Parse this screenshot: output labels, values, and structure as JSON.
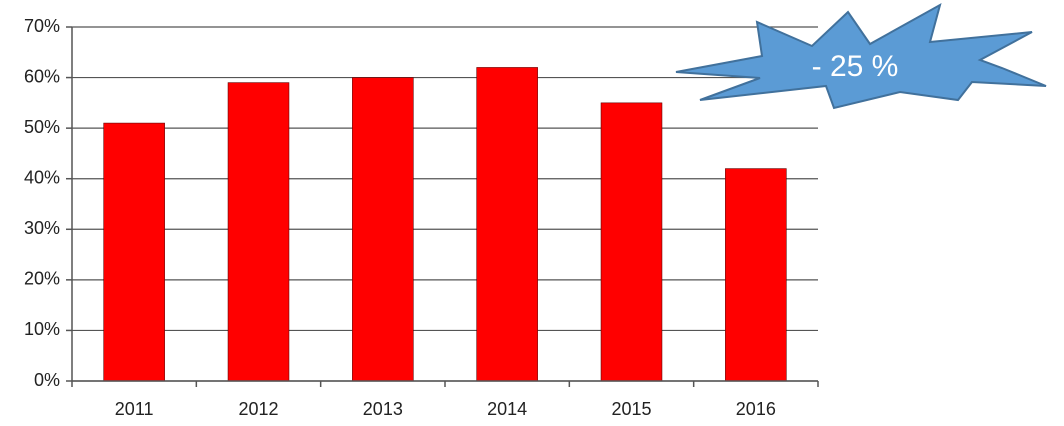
{
  "chart_data": {
    "type": "bar",
    "categories": [
      "2011",
      "2012",
      "2013",
      "2014",
      "2015",
      "2016"
    ],
    "values": [
      51,
      59,
      60,
      62,
      55,
      42
    ],
    "color": "#ff0000",
    "ylim": [
      0,
      70
    ],
    "yticks": [
      {
        "value": 0,
        "label": "0%"
      },
      {
        "value": 10,
        "label": "10%"
      },
      {
        "value": 20,
        "label": "20%"
      },
      {
        "value": 30,
        "label": "30%"
      },
      {
        "value": 40,
        "label": "40%"
      },
      {
        "value": 50,
        "label": "50%"
      },
      {
        "value": 60,
        "label": "60%"
      },
      {
        "value": 70,
        "label": "70%"
      }
    ],
    "grid": true,
    "annotation": "- 25 %"
  }
}
